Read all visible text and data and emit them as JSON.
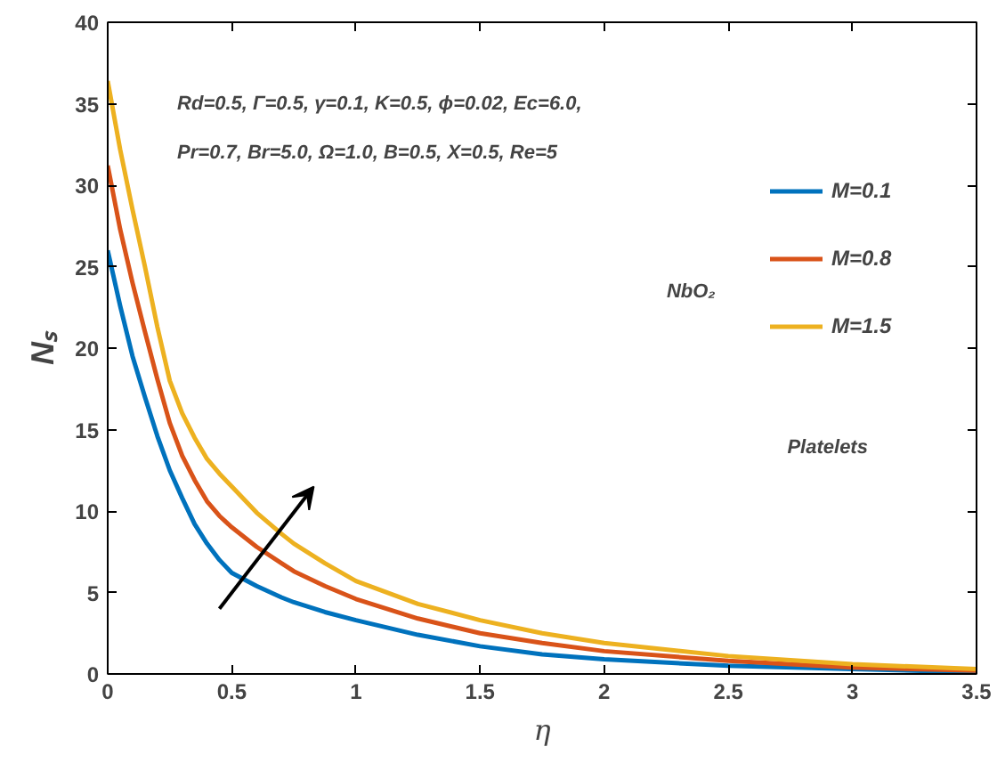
{
  "chart_data": {
    "type": "line",
    "xlabel": "η",
    "ylabel": "Nₛ",
    "x": [
      0,
      0.05,
      0.1,
      0.15,
      0.2,
      0.25,
      0.3,
      0.35,
      0.4,
      0.45,
      0.5,
      0.6,
      0.7,
      0.75,
      0.875,
      1.0,
      1.25,
      1.5,
      1.75,
      2.0,
      2.5,
      3.0,
      3.5
    ],
    "series": [
      {
        "name": "M=0.1",
        "color": "#0072bd",
        "values": [
          26.0,
          22.6,
          19.5,
          17.0,
          14.6,
          12.5,
          10.8,
          9.2,
          8.0,
          7.0,
          6.2,
          5.4,
          4.7,
          4.4,
          3.8,
          3.3,
          2.4,
          1.7,
          1.2,
          0.9,
          0.5,
          0.3,
          0.1
        ]
      },
      {
        "name": "M=0.8",
        "color": "#d95319",
        "values": [
          31.2,
          27.3,
          24.0,
          21.0,
          18.1,
          15.4,
          13.4,
          11.9,
          10.6,
          9.7,
          9.0,
          7.8,
          6.8,
          6.3,
          5.4,
          4.6,
          3.4,
          2.5,
          1.9,
          1.4,
          0.8,
          0.4,
          0.2
        ]
      },
      {
        "name": "M=1.5",
        "color": "#edb120",
        "values": [
          36.4,
          32.2,
          28.5,
          25.0,
          21.3,
          18.0,
          16.0,
          14.5,
          13.2,
          12.3,
          11.5,
          9.9,
          8.6,
          8.0,
          6.8,
          5.7,
          4.3,
          3.3,
          2.5,
          1.9,
          1.1,
          0.6,
          0.3
        ]
      }
    ],
    "xlim": [
      0,
      3.5
    ],
    "ylim": [
      0,
      40
    ],
    "xticks": [
      0,
      0.5,
      1,
      1.5,
      2,
      2.5,
      3,
      3.5
    ],
    "yticks": [
      0,
      5,
      10,
      15,
      20,
      25,
      30,
      35,
      40
    ],
    "annotations": [
      "Rd=0.5, Γ=0.5, γ=0.1, K=0.5, ϕ=0.02, Ec=6.0,",
      "Pr=0.7, Br=5.0, Ω=1.0, B=0.5, X=0.5, Re=5",
      "NbO₂",
      "Platelets"
    ],
    "legend": "right",
    "grid": false,
    "marker": "none",
    "line_style": "solid"
  }
}
